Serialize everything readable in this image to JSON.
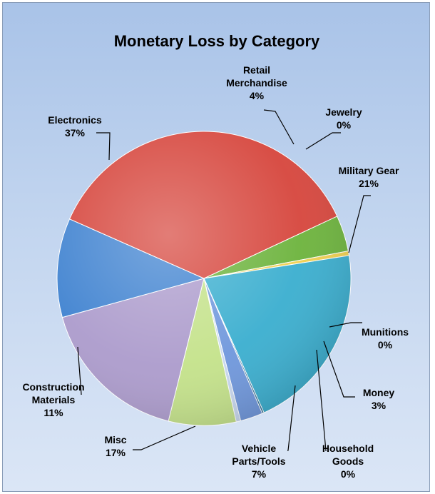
{
  "chart_data": {
    "type": "pie",
    "title": "Monetary Loss by Category",
    "legend": "none",
    "slices": [
      {
        "label": "Retail Merchandise",
        "label_lines": [
          "Retail",
          "Merchandise"
        ],
        "pct_label": "4%",
        "value": 4,
        "color": "#6cb33c"
      },
      {
        "label": "Jewelry",
        "label_lines": [
          "Jewelry"
        ],
        "pct_label": "0%",
        "value": 0.5,
        "color": "#f0d050"
      },
      {
        "label": "Military Gear",
        "label_lines": [
          "Military Gear"
        ],
        "pct_label": "21%",
        "value": 21,
        "color": "#3aaecf"
      },
      {
        "label": "Munitions",
        "label_lines": [
          "Munitions"
        ],
        "pct_label": "0%",
        "value": 0.2,
        "color": "#2c6e9a"
      },
      {
        "label": "Money",
        "label_lines": [
          "Money"
        ],
        "pct_label": "3%",
        "value": 2.5,
        "color": "#6f97dc"
      },
      {
        "label": "Household Goods",
        "label_lines": [
          "Household",
          "Goods"
        ],
        "pct_label": "0%",
        "value": 0.5,
        "color": "#c8d8f0"
      },
      {
        "label": "Vehicle Parts/Tools",
        "label_lines": [
          "Vehicle",
          "Parts/Tools"
        ],
        "pct_label": "7%",
        "value": 7.5,
        "color": "#c4e28a"
      },
      {
        "label": "Misc",
        "label_lines": [
          "Misc"
        ],
        "pct_label": "17%",
        "value": 17,
        "color": "#ac9bcc"
      },
      {
        "label": "Construction Materials",
        "label_lines": [
          "Construction",
          "Materials"
        ],
        "pct_label": "11%",
        "value": 11,
        "color": "#3f82d0"
      },
      {
        "label": "Electronics",
        "label_lines": [
          "Electronics"
        ],
        "pct_label": "37%",
        "value": 36.8,
        "color": "#d6453c"
      }
    ]
  }
}
